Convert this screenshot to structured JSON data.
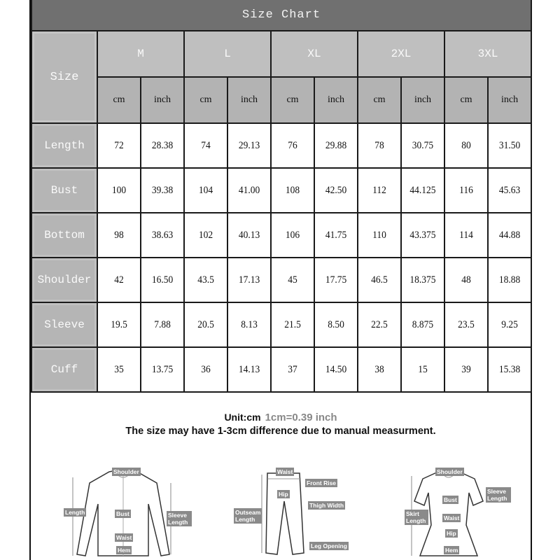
{
  "title": "Size Chart",
  "size_label": "Size",
  "sizes": [
    "M",
    "L",
    "XL",
    "2XL",
    "3XL"
  ],
  "units": [
    "cm",
    "inch"
  ],
  "rows": [
    {
      "label": "Length",
      "values": [
        "72",
        "28.38",
        "74",
        "29.13",
        "76",
        "29.88",
        "78",
        "30.75",
        "80",
        "31.50"
      ]
    },
    {
      "label": "Bust",
      "values": [
        "100",
        "39.38",
        "104",
        "41.00",
        "108",
        "42.50",
        "112",
        "44.125",
        "116",
        "45.63"
      ]
    },
    {
      "label": "Bottom",
      "values": [
        "98",
        "38.63",
        "102",
        "40.13",
        "106",
        "41.75",
        "110",
        "43.375",
        "114",
        "44.88"
      ]
    },
    {
      "label": "Shoulder",
      "values": [
        "42",
        "16.50",
        "43.5",
        "17.13",
        "45",
        "17.75",
        "46.5",
        "18.375",
        "48",
        "18.88"
      ]
    },
    {
      "label": "Sleeve",
      "values": [
        "19.5",
        "7.88",
        "20.5",
        "8.13",
        "21.5",
        "8.50",
        "22.5",
        "8.875",
        "23.5",
        "9.25"
      ]
    },
    {
      "label": "Cuff",
      "values": [
        "35",
        "13.75",
        "36",
        "14.13",
        "37",
        "14.50",
        "38",
        "15",
        "39",
        "15.38"
      ]
    }
  ],
  "notes": {
    "unit": "Unit:cm",
    "conversion": "1cm=0.39 inch",
    "difference": "The size may have 1-3cm difference due to manual measurment."
  },
  "diagrams": {
    "shirt": [
      "Shoulder",
      "Length",
      "Bust",
      "Sleeve Length",
      "Waist",
      "Hem"
    ],
    "pants": [
      "Waist",
      "Front Rise",
      "Hip",
      "Thigh Width",
      "Outseam Length",
      "Leg Opening"
    ],
    "dress": [
      "Shoulder",
      "Sleeve Length",
      "Bust",
      "Skirt Length",
      "Waist",
      "Hip",
      "Hem"
    ]
  },
  "colors": {
    "header": "#707070",
    "label_cell": "#b5b5b5",
    "unit_cell": "#b3b3b3",
    "diagram_label": "#8a8a8a"
  }
}
